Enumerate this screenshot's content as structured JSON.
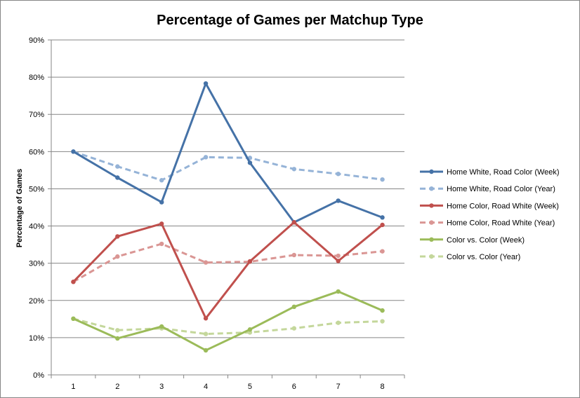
{
  "chart_data": {
    "type": "line",
    "title": "Percentage of Games per Matchup Type",
    "xlabel": "",
    "ylabel": "Percentage of Games",
    "categories": [
      "1",
      "2",
      "3",
      "4",
      "5",
      "6",
      "7",
      "8"
    ],
    "ylim": [
      0,
      0.9
    ],
    "y_ticks": [
      "0%",
      "10%",
      "20%",
      "30%",
      "40%",
      "50%",
      "60%",
      "70%",
      "80%",
      "90%"
    ],
    "grid": true,
    "legend_position": "right",
    "series": [
      {
        "name": "Home White, Road Color (Week)",
        "color": "#4572A7",
        "dash": "solid",
        "values": [
          0.6,
          0.53,
          0.464,
          0.783,
          0.57,
          0.41,
          0.468,
          0.423
        ]
      },
      {
        "name": "Home White, Road Color (Year)",
        "color": "#95B3D7",
        "dash": "dashed",
        "values": [
          0.6,
          0.56,
          0.523,
          0.585,
          0.583,
          0.553,
          0.54,
          0.525
        ]
      },
      {
        "name": "Home Color, Road White (Week)",
        "color": "#C0504D",
        "dash": "solid",
        "values": [
          0.25,
          0.372,
          0.406,
          0.152,
          0.305,
          0.41,
          0.306,
          0.403
        ]
      },
      {
        "name": "Home Color, Road White (Year)",
        "color": "#DA9694",
        "dash": "dashed",
        "values": [
          0.25,
          0.318,
          0.352,
          0.302,
          0.304,
          0.322,
          0.32,
          0.332
        ]
      },
      {
        "name": "Color vs. Color (Week)",
        "color": "#9BBB59",
        "dash": "solid",
        "values": [
          0.151,
          0.098,
          0.13,
          0.066,
          0.122,
          0.183,
          0.224,
          0.173
        ]
      },
      {
        "name": "Color vs. Color (Year)",
        "color": "#C4D79B",
        "dash": "dashed",
        "values": [
          0.151,
          0.12,
          0.125,
          0.11,
          0.114,
          0.125,
          0.14,
          0.144
        ]
      }
    ]
  }
}
